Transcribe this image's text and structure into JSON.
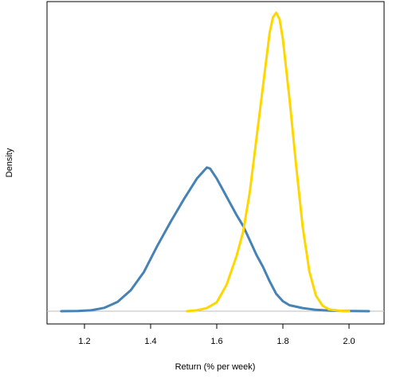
{
  "chart_data": {
    "type": "line",
    "title": "",
    "xlabel": "Return (% per week)",
    "ylabel": "Density",
    "xlim": [
      1.1,
      2.1
    ],
    "ylim": [
      -0.28,
      13.4
    ],
    "x_ticks": [
      "1.2",
      "1.4",
      "1.6",
      "1.8",
      "2.0"
    ],
    "y_ticks": [],
    "grid": false,
    "legend": "none",
    "baseline": 0,
    "series": [
      {
        "color": "#4682B4",
        "points": [
          [
            1.13,
            0.0
          ],
          [
            1.18,
            0.01
          ],
          [
            1.22,
            0.04
          ],
          [
            1.26,
            0.15
          ],
          [
            1.3,
            0.42
          ],
          [
            1.34,
            0.95
          ],
          [
            1.38,
            1.78
          ],
          [
            1.42,
            2.95
          ],
          [
            1.46,
            4.03
          ],
          [
            1.5,
            5.05
          ],
          [
            1.54,
            6.0
          ],
          [
            1.57,
            6.5
          ],
          [
            1.58,
            6.45
          ],
          [
            1.6,
            6.0
          ],
          [
            1.62,
            5.45
          ],
          [
            1.64,
            4.9
          ],
          [
            1.66,
            4.35
          ],
          [
            1.68,
            3.85
          ],
          [
            1.7,
            3.2
          ],
          [
            1.72,
            2.55
          ],
          [
            1.74,
            2.0
          ],
          [
            1.76,
            1.35
          ],
          [
            1.78,
            0.78
          ],
          [
            1.8,
            0.45
          ],
          [
            1.82,
            0.27
          ],
          [
            1.86,
            0.14
          ],
          [
            1.9,
            0.06
          ],
          [
            1.94,
            0.03
          ],
          [
            2.0,
            0.01
          ],
          [
            2.06,
            0.0
          ]
        ]
      },
      {
        "color": "#FFD700",
        "points": [
          [
            1.51,
            0.0
          ],
          [
            1.54,
            0.04
          ],
          [
            1.57,
            0.14
          ],
          [
            1.6,
            0.4
          ],
          [
            1.63,
            1.2
          ],
          [
            1.66,
            2.5
          ],
          [
            1.68,
            3.6
          ],
          [
            1.7,
            5.4
          ],
          [
            1.72,
            7.8
          ],
          [
            1.74,
            10.2
          ],
          [
            1.76,
            12.6
          ],
          [
            1.77,
            13.3
          ],
          [
            1.78,
            13.5
          ],
          [
            1.79,
            13.2
          ],
          [
            1.8,
            12.3
          ],
          [
            1.82,
            9.6
          ],
          [
            1.84,
            6.6
          ],
          [
            1.86,
            3.8
          ],
          [
            1.88,
            1.8
          ],
          [
            1.9,
            0.7
          ],
          [
            1.92,
            0.25
          ],
          [
            1.94,
            0.08
          ],
          [
            1.97,
            0.02
          ],
          [
            2.0,
            0.0
          ]
        ]
      }
    ]
  }
}
